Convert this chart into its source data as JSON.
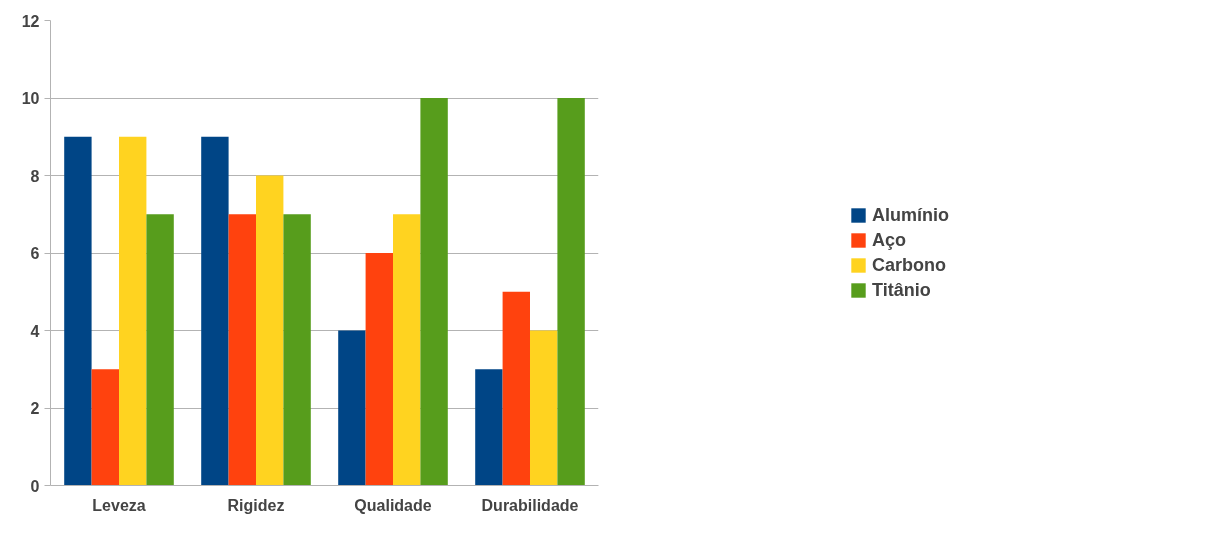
{
  "chart_data": {
    "type": "bar",
    "categories": [
      "Leveza",
      "Rigidez",
      "Qualidade",
      "Durabilidade"
    ],
    "series": [
      {
        "name": "Alumínio",
        "color": "#004586",
        "values": [
          9,
          9,
          4,
          3
        ]
      },
      {
        "name": "Aço",
        "color": "#ff420e",
        "values": [
          3,
          7,
          6,
          5
        ]
      },
      {
        "name": "Carbono",
        "color": "#ffd320",
        "values": [
          9,
          8,
          7,
          4
        ]
      },
      {
        "name": "Titânio",
        "color": "#579d1c",
        "values": [
          7,
          7,
          10,
          10
        ]
      }
    ],
    "ylim": [
      0,
      12
    ],
    "yticks": [
      0,
      2,
      4,
      6,
      8,
      10,
      12
    ],
    "grid": "y",
    "legend": "right"
  }
}
